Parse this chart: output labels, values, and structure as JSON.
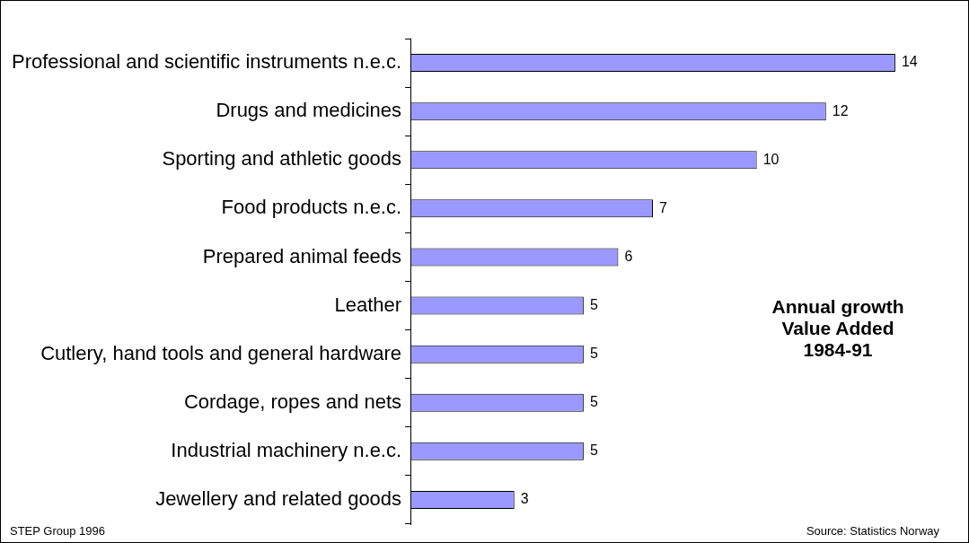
{
  "chart_data": {
    "type": "bar",
    "orientation": "horizontal",
    "categories": [
      "Professional and scientific instruments n.e.c.",
      "Drugs and medicines",
      "Sporting and athletic goods",
      "Food products n.e.c.",
      "Prepared animal feeds",
      "Leather",
      "Cutlery, hand tools and general hardware",
      "Cordage, ropes and nets",
      "Industrial machinery n.e.c.",
      "Jewellery and related goods"
    ],
    "values": [
      14,
      12,
      10,
      7,
      6,
      5,
      5,
      5,
      5,
      3
    ],
    "color": "#9999ff",
    "data_labels": true,
    "grid": false,
    "legend": false,
    "tick_labels": "y",
    "annotations": [
      "Annual growth\nValue Added\n1984-91",
      "STEP Group 1996",
      "Source: Statistics Norway"
    ]
  }
}
